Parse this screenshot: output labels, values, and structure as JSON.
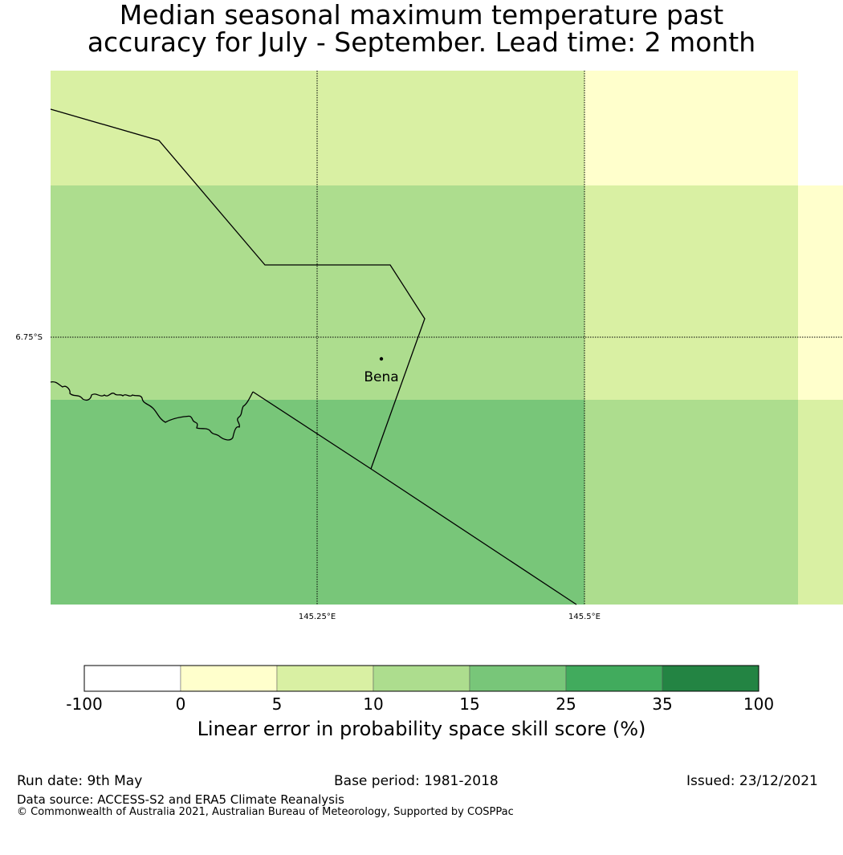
{
  "title": {
    "line1": "Median seasonal maximum temperature past",
    "line2": "accuracy for July - September. Lead time: 2 month"
  },
  "map": {
    "place": "Bena",
    "lat_label": "6.75°S",
    "lon_labels": [
      "145.25°E",
      "145.5°E"
    ]
  },
  "colorbar": {
    "title": "Linear error in probability space skill score (%)",
    "ticks": [
      "-100",
      "0",
      "5",
      "10",
      "15",
      "25",
      "35",
      "100"
    ],
    "colors": [
      "#ffffff",
      "#ffffcc",
      "#d9f0a3",
      "#addd8e",
      "#78c679",
      "#41ab5d",
      "#238443"
    ]
  },
  "footer": {
    "run_date": "Run date: 9th May",
    "base_period": "Base period: 1981-2018",
    "issued": "Issued: 23/12/2021",
    "data_source": "Data source: ACCESS-S2 and ERA5 Climate Reanalysis",
    "copyright": "© Commonwealth of Australia 2021, Australian Bureau of Meteorology, Supported by COSPPac"
  }
}
